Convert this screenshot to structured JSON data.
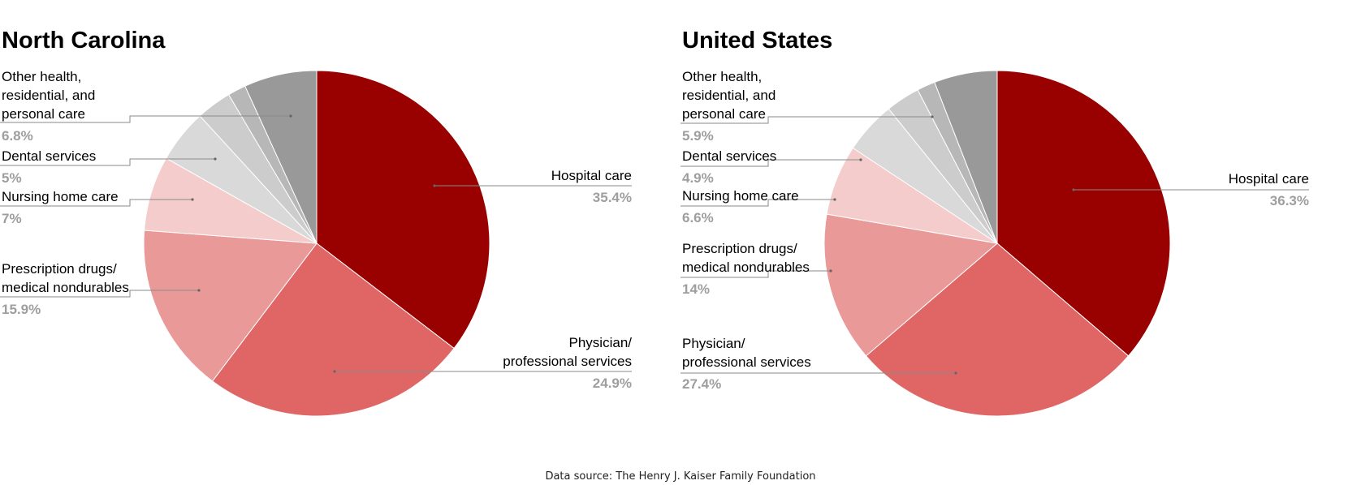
{
  "chart_data": [
    {
      "type": "pie",
      "title": "North Carolina",
      "slices": [
        {
          "label": "Hospital care",
          "value": 35.4,
          "value_label": "35.4%",
          "color": "#990000"
        },
        {
          "label": "Physician/\nprofessional services",
          "value": 24.9,
          "value_label": "24.9%",
          "color": "#e06666"
        },
        {
          "label": "Prescription drugs/\nmedical nondurables",
          "value": 15.9,
          "value_label": "15.9%",
          "color": "#ea9999"
        },
        {
          "label": "Nursing home care",
          "value": 7,
          "value_label": "7%",
          "color": "#f4cccc"
        },
        {
          "label": "Dental services",
          "value": 5,
          "value_label": "5%",
          "color": "#d9d9d9"
        },
        {
          "value": 3.3,
          "color": "#cccccc"
        },
        {
          "value": 1.7,
          "color": "#b7b7b7"
        },
        {
          "label": "Other health,\nresidential, and\npersonal care",
          "value": 6.8,
          "value_label": "6.8%",
          "color": "#999999"
        }
      ]
    },
    {
      "type": "pie",
      "title": "United States",
      "slices": [
        {
          "label": "Hospital care",
          "value": 36.3,
          "value_label": "36.3%",
          "color": "#990000"
        },
        {
          "label": "Physician/\nprofessional services",
          "value": 27.4,
          "value_label": "27.4%",
          "color": "#e06666"
        },
        {
          "label": "Prescription drugs/\nmedical nondurables",
          "value": 14,
          "value_label": "14%",
          "color": "#ea9999"
        },
        {
          "label": "Nursing home care",
          "value": 6.6,
          "value_label": "6.6%",
          "color": "#f4cccc"
        },
        {
          "label": "Dental services",
          "value": 4.9,
          "value_label": "4.9%",
          "color": "#d9d9d9"
        },
        {
          "value": 3.2,
          "color": "#cccccc"
        },
        {
          "value": 1.7,
          "color": "#b7b7b7"
        },
        {
          "label": "Other health,\nresidential, and\npersonal care",
          "value": 5.9,
          "value_label": "5.9%",
          "color": "#999999"
        }
      ]
    }
  ],
  "footer": {
    "source": "Data source: The Henry J. Kaiser Family Foundation"
  }
}
